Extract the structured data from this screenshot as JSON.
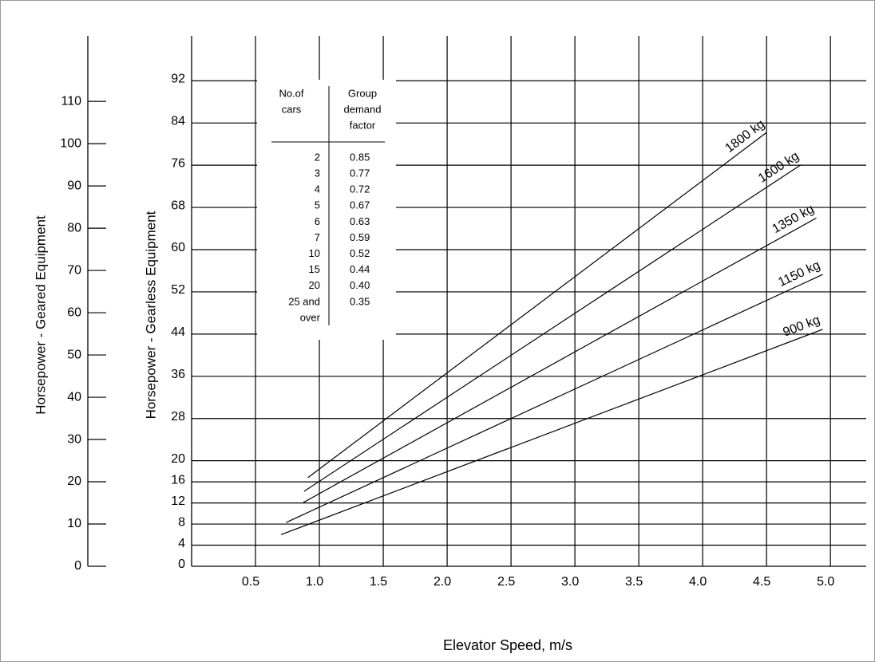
{
  "chart_data": {
    "type": "line",
    "x_label": "Elevator Speed, m/s",
    "y_label": "Horsepower - Gearless Equipment",
    "y2_label": "Horsepower - Geared Equipment",
    "xlim": [
      0,
      5.28
    ],
    "xticks": [
      0.5,
      {
        "value": 1,
        "label": "1.0"
      },
      1.5,
      {
        "value": 2,
        "label": "2.0"
      },
      2.5,
      {
        "value": 3,
        "label": "3.0"
      },
      3.5,
      {
        "value": 4,
        "label": "4.0"
      },
      4.5,
      {
        "value": 5,
        "label": "5.0"
      }
    ],
    "ylim": [
      0,
      100.5
    ],
    "yticks": [
      0,
      4,
      8,
      12,
      16,
      20,
      28,
      36,
      44,
      52,
      60,
      68,
      76,
      84,
      92
    ],
    "y2lim": [
      0,
      125.5
    ],
    "y2ticks": [
      0,
      10,
      20,
      30,
      40,
      50,
      60,
      70,
      80,
      90,
      100,
      110
    ],
    "grid": true,
    "series": [
      {
        "name": "1800 kg",
        "color": "#000000",
        "x": [
          0.91,
          4.5
        ],
        "values": [
          16.8,
          82.2
        ]
      },
      {
        "name": "1600 kg",
        "color": "#000000",
        "x": [
          0.88,
          4.77
        ],
        "values": [
          14.2,
          76.1
        ]
      },
      {
        "name": "1350 kg",
        "color": "#000000",
        "x": [
          0.875,
          4.89
        ],
        "values": [
          12.1,
          66.0
        ]
      },
      {
        "name": "1150 kg",
        "color": "#000000",
        "x": [
          0.74,
          4.94
        ],
        "values": [
          8.3,
          55.3
        ]
      },
      {
        "name": "900 kg",
        "color": "#000000",
        "x": [
          0.7,
          4.94
        ],
        "values": [
          6.0,
          44.9
        ]
      }
    ],
    "table": {
      "headers": [
        [
          "No.of",
          "cars"
        ],
        [
          "Group",
          "demand",
          "factor"
        ]
      ],
      "rows": [
        [
          "2",
          "0.85"
        ],
        [
          "3",
          "0.77"
        ],
        [
          "4",
          "0.72"
        ],
        [
          "5",
          "0.67"
        ],
        [
          "6",
          "0.63"
        ],
        [
          "7",
          "0.59"
        ],
        [
          "10",
          "0.52"
        ],
        [
          "15",
          "0.44"
        ],
        [
          "20",
          "0.40"
        ],
        [
          "25 and",
          "0.35"
        ],
        [
          "over",
          null
        ]
      ]
    }
  }
}
